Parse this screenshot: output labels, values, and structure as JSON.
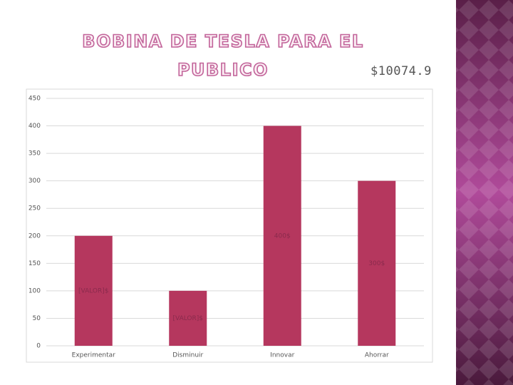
{
  "chart_data": {
    "type": "bar",
    "title": "BOBINA DE TESLA PARA EL PUBLICO",
    "annotation": "$10074.9",
    "categories": [
      "Experimentar",
      "Disminuir",
      "Innovar",
      "Ahorrar"
    ],
    "values": [
      200,
      100,
      400,
      300
    ],
    "value_labels": [
      "[VALOR]$",
      "[VALOR]$",
      "400$",
      "300$"
    ],
    "color": "#b5375e",
    "ylim": [
      0,
      450
    ],
    "yticks": [
      0,
      50,
      100,
      150,
      200,
      250,
      300,
      350,
      400,
      450
    ],
    "grid": true
  }
}
